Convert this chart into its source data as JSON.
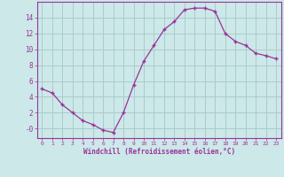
{
  "x": [
    0,
    1,
    2,
    3,
    4,
    5,
    6,
    7,
    8,
    9,
    10,
    11,
    12,
    13,
    14,
    15,
    16,
    17,
    18,
    19,
    20,
    21,
    22,
    23
  ],
  "y": [
    5,
    4.5,
    3,
    2,
    1,
    0.5,
    -0.2,
    -0.5,
    2,
    5.5,
    8.5,
    10.5,
    12.5,
    13.5,
    15,
    15.2,
    15.2,
    14.8,
    12,
    11,
    10.5,
    9.5,
    9.2,
    8.8
  ],
  "line_color": "#993399",
  "marker": "+",
  "marker_color": "#993399",
  "bg_color": "#cce8e8",
  "grid_color": "#aacccc",
  "axis_color": "#993399",
  "tick_color": "#993399",
  "xlabel": "Windchill (Refroidissement éolien,°C)",
  "xlabel_color": "#993399",
  "ylim": [
    -1.2,
    16
  ],
  "xlim": [
    -0.5,
    23.5
  ],
  "yticks": [
    0,
    2,
    4,
    6,
    8,
    10,
    12,
    14
  ],
  "ytick_labels": [
    "-0",
    "2",
    "4",
    "6",
    "8",
    "10",
    "12",
    "14"
  ],
  "xticks": [
    0,
    1,
    2,
    3,
    4,
    5,
    6,
    7,
    8,
    9,
    10,
    11,
    12,
    13,
    14,
    15,
    16,
    17,
    18,
    19,
    20,
    21,
    22,
    23
  ]
}
